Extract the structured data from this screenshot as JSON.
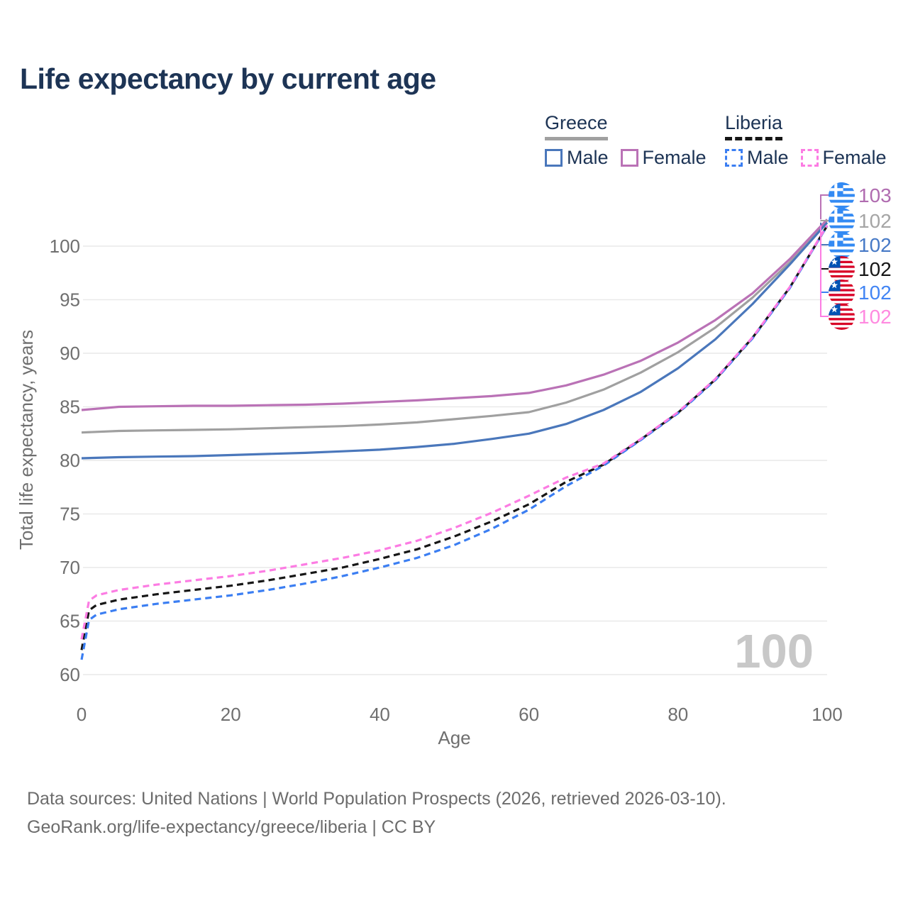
{
  "title": "Life expectancy by current age",
  "legend": {
    "groups": [
      {
        "name": "Greece",
        "line_style": "solid",
        "line_color": "#a0a0a0",
        "items": [
          {
            "label": "Male",
            "box_color": "#4a77bb",
            "box_style": "solid"
          },
          {
            "label": "Female",
            "box_color": "#ba72b6",
            "box_style": "solid"
          }
        ]
      },
      {
        "name": "Liberia",
        "line_style": "dashed",
        "line_color": "#161616",
        "items": [
          {
            "label": "Male",
            "box_color": "#3b7ef2",
            "box_style": "dashed"
          },
          {
            "label": "Female",
            "box_color": "#fc7ce3",
            "box_style": "dashed"
          }
        ]
      }
    ]
  },
  "watermark_current_age": "100",
  "right_labels": [
    {
      "country": "greece",
      "flag_icon": "greece-flag-icon",
      "value": "103",
      "color": "#b06cb0",
      "series": "greece-female"
    },
    {
      "country": "greece",
      "flag_icon": "greece-flag-icon",
      "value": "102",
      "color": "#a5a5a5",
      "series": "greece-total"
    },
    {
      "country": "greece",
      "flag_icon": "greece-flag-icon",
      "value": "102",
      "color": "#4679c6",
      "series": "greece-male"
    },
    {
      "country": "liberia",
      "flag_icon": "liberia-flag-icon",
      "value": "102",
      "color": "#161616",
      "series": "liberia-total"
    },
    {
      "country": "liberia",
      "flag_icon": "liberia-flag-icon",
      "value": "102",
      "color": "#4285f4",
      "series": "liberia-male"
    },
    {
      "country": "liberia",
      "flag_icon": "liberia-flag-icon",
      "value": "102",
      "color": "#ff8ae0",
      "series": "liberia-female"
    }
  ],
  "footer": {
    "line1": "Data sources: United Nations | World Population Prospects (2026, retrieved 2026-03-10).",
    "line2": "GeoRank.org/life-expectancy/greece/liberia | CC BY"
  },
  "chart_data": {
    "type": "line",
    "title": "Life expectancy by current age",
    "xlabel": "Age",
    "ylabel": "Total life expectancy, years",
    "xlim": [
      0,
      100
    ],
    "ylim": [
      60,
      103
    ],
    "x_ticks": [
      0,
      20,
      40,
      60,
      80,
      100
    ],
    "y_ticks": [
      60,
      65,
      70,
      75,
      80,
      85,
      90,
      95,
      100
    ],
    "grid": "horizontal",
    "legend_position": "top-right",
    "series": [
      {
        "key": "greece-total",
        "name": "Greece Both sexes",
        "color": "#a0a0a0",
        "dash": false,
        "end_label": "102",
        "x": [
          0,
          5,
          10,
          15,
          20,
          25,
          30,
          35,
          40,
          45,
          50,
          55,
          60,
          65,
          70,
          75,
          80,
          85,
          90,
          95,
          100
        ],
        "y": [
          82.6,
          82.75,
          82.8,
          82.85,
          82.9,
          83.0,
          83.1,
          83.2,
          83.35,
          83.55,
          83.85,
          84.15,
          84.5,
          85.4,
          86.6,
          88.2,
          90.1,
          92.4,
          95.2,
          98.5,
          102.4
        ]
      },
      {
        "key": "greece-male",
        "name": "Greece Male",
        "color": "#4a77bb",
        "dash": false,
        "end_label": "102",
        "x": [
          0,
          5,
          10,
          15,
          20,
          25,
          30,
          35,
          40,
          45,
          50,
          55,
          60,
          65,
          70,
          75,
          80,
          85,
          90,
          95,
          100
        ],
        "y": [
          80.2,
          80.3,
          80.35,
          80.4,
          80.5,
          80.6,
          80.7,
          80.85,
          81.0,
          81.25,
          81.55,
          82.0,
          82.5,
          83.4,
          84.7,
          86.4,
          88.6,
          91.3,
          94.6,
          98.3,
          102.2
        ]
      },
      {
        "key": "greece-female",
        "name": "Greece Female",
        "color": "#ba72b6",
        "dash": false,
        "end_label": "103",
        "x": [
          0,
          5,
          10,
          15,
          20,
          25,
          30,
          35,
          40,
          45,
          50,
          55,
          60,
          65,
          70,
          75,
          80,
          85,
          90,
          95,
          100
        ],
        "y": [
          84.7,
          85.0,
          85.05,
          85.1,
          85.1,
          85.15,
          85.2,
          85.3,
          85.45,
          85.6,
          85.8,
          86.0,
          86.3,
          87.0,
          88.0,
          89.3,
          91.0,
          93.1,
          95.6,
          98.8,
          102.5
        ]
      },
      {
        "key": "liberia-total",
        "name": "Liberia Both sexes",
        "color": "#161616",
        "dash": true,
        "end_label": "102",
        "x": [
          0,
          1,
          2,
          5,
          10,
          15,
          20,
          25,
          30,
          35,
          40,
          45,
          50,
          55,
          60,
          65,
          70,
          75,
          80,
          85,
          90,
          95,
          100
        ],
        "y": [
          62.3,
          66.0,
          66.5,
          67.0,
          67.5,
          67.9,
          68.3,
          68.8,
          69.4,
          70.0,
          70.8,
          71.7,
          72.9,
          74.3,
          75.9,
          78.0,
          79.6,
          81.95,
          84.45,
          87.55,
          91.45,
          96.15,
          101.9
        ]
      },
      {
        "key": "liberia-male",
        "name": "Liberia Male",
        "color": "#3b7ef2",
        "dash": true,
        "end_label": "102",
        "x": [
          0,
          1,
          2,
          5,
          10,
          15,
          20,
          25,
          30,
          35,
          40,
          45,
          50,
          55,
          60,
          65,
          70,
          75,
          80,
          85,
          90,
          95,
          100
        ],
        "y": [
          61.4,
          65.1,
          65.6,
          66.1,
          66.6,
          67.0,
          67.4,
          67.9,
          68.5,
          69.2,
          70.0,
          70.9,
          72.1,
          73.6,
          75.4,
          77.6,
          79.5,
          81.9,
          84.4,
          87.5,
          91.4,
          96.1,
          101.9
        ]
      },
      {
        "key": "liberia-female",
        "name": "Liberia Female",
        "color": "#fc7ce3",
        "dash": true,
        "end_label": "102",
        "x": [
          0,
          1,
          2,
          5,
          10,
          15,
          20,
          25,
          30,
          35,
          40,
          45,
          50,
          55,
          60,
          65,
          70,
          75,
          80,
          85,
          90,
          95,
          100
        ],
        "y": [
          63.3,
          66.9,
          67.4,
          67.9,
          68.4,
          68.8,
          69.2,
          69.7,
          70.3,
          70.9,
          71.6,
          72.5,
          73.7,
          75.1,
          76.7,
          78.4,
          79.7,
          82.0,
          84.5,
          87.6,
          91.5,
          96.2,
          101.95
        ]
      }
    ]
  }
}
